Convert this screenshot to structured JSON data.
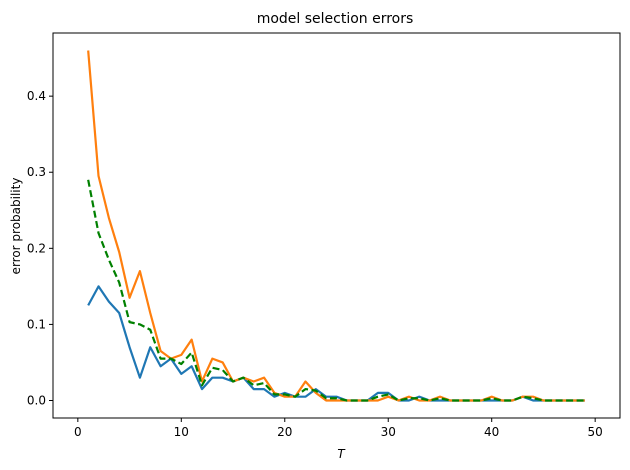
{
  "chart_data": {
    "type": "line",
    "title": "model selection errors",
    "xlabel": "T",
    "ylabel": "error probability",
    "xlim": [
      -2.4,
      52.4
    ],
    "ylim": [
      -0.023,
      0.483
    ],
    "xticks": [
      0,
      10,
      20,
      30,
      40,
      50
    ],
    "yticks": [
      0.0,
      0.1,
      0.2,
      0.3,
      0.4
    ],
    "grid": false,
    "legend": "none",
    "x": [
      1,
      2,
      3,
      4,
      5,
      6,
      7,
      8,
      9,
      10,
      11,
      12,
      13,
      14,
      15,
      16,
      17,
      18,
      19,
      20,
      21,
      22,
      23,
      24,
      25,
      26,
      27,
      28,
      29,
      30,
      31,
      32,
      33,
      34,
      35,
      36,
      37,
      38,
      39,
      40,
      41,
      42,
      43,
      44,
      45,
      46,
      47,
      48,
      49
    ],
    "series": [
      {
        "color": "#1f77b4",
        "style": "solid",
        "values": [
          0.125,
          0.15,
          0.13,
          0.115,
          0.07,
          0.03,
          0.07,
          0.045,
          0.055,
          0.035,
          0.045,
          0.015,
          0.03,
          0.03,
          0.025,
          0.03,
          0.015,
          0.015,
          0.005,
          0.01,
          0.005,
          0.005,
          0.015,
          0.005,
          0.005,
          0,
          0,
          0,
          0.01,
          0.01,
          0,
          0,
          0.005,
          0,
          0,
          0,
          0,
          0,
          0,
          0,
          0,
          0,
          0.005,
          0,
          0,
          0,
          0,
          0,
          0
        ]
      },
      {
        "color": "#ff7f0e",
        "style": "solid",
        "values": [
          0.46,
          0.295,
          0.24,
          0.195,
          0.135,
          0.17,
          0.115,
          0.065,
          0.055,
          0.06,
          0.08,
          0.025,
          0.055,
          0.05,
          0.025,
          0.03,
          0.025,
          0.03,
          0.01,
          0.005,
          0.005,
          0.025,
          0.01,
          0,
          0,
          0,
          0,
          0,
          0,
          0.005,
          0,
          0.005,
          0,
          0,
          0.005,
          0,
          0,
          0,
          0,
          0.005,
          0,
          0,
          0.005,
          0.005,
          0,
          0,
          0,
          0,
          0
        ]
      },
      {
        "color": "#008000",
        "style": "dashed",
        "values": [
          0.29,
          0.22,
          0.185,
          0.155,
          0.103,
          0.1,
          0.093,
          0.055,
          0.055,
          0.048,
          0.063,
          0.02,
          0.043,
          0.04,
          0.025,
          0.03,
          0.02,
          0.023,
          0.008,
          0.008,
          0.005,
          0.015,
          0.013,
          0.003,
          0.003,
          0,
          0,
          0,
          0.005,
          0.008,
          0,
          0.003,
          0.003,
          0,
          0.003,
          0,
          0,
          0,
          0,
          0.003,
          0,
          0,
          0.005,
          0.003,
          0,
          0,
          0,
          0,
          0
        ]
      }
    ]
  }
}
